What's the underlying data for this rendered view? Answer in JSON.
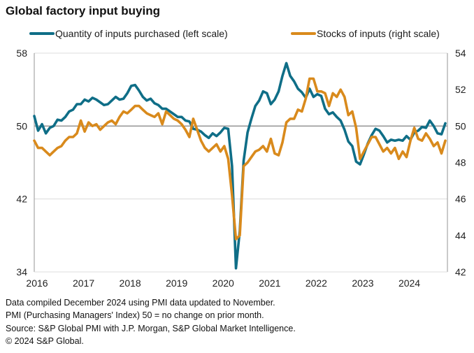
{
  "chart_data": {
    "type": "line",
    "title": "Global factory input buying",
    "xlabel": "",
    "ylabel_left": "",
    "ylabel_right": "",
    "x_start": "2016-01",
    "x_end": "2024-11",
    "x_ticks": [
      "2016",
      "2017",
      "2018",
      "2019",
      "2020",
      "2021",
      "2022",
      "2023",
      "2024"
    ],
    "y_left": {
      "range": [
        34,
        58
      ],
      "ticks": [
        34,
        42,
        50,
        58
      ]
    },
    "y_right": {
      "range": [
        42,
        54
      ],
      "ticks": [
        42,
        44,
        46,
        48,
        50,
        52,
        54
      ]
    },
    "grid": true,
    "reference_line": 50,
    "legend_position": "top",
    "series": [
      {
        "name": "Quantity of inputs purchased (left scale)",
        "axis": "left",
        "color": "#0f6e87",
        "values": [
          51.1,
          49.5,
          50.2,
          49.2,
          49.8,
          50.0,
          50.7,
          50.6,
          51.0,
          51.6,
          51.8,
          52.4,
          52.4,
          52.9,
          52.7,
          53.1,
          52.9,
          52.6,
          52.3,
          52.4,
          52.8,
          53.2,
          52.9,
          53.0,
          53.6,
          54.4,
          54.5,
          53.9,
          53.2,
          52.8,
          53.0,
          52.5,
          52.3,
          51.9,
          51.9,
          51.6,
          51.3,
          51.0,
          51.0,
          50.6,
          50.5,
          49.7,
          49.6,
          49.4,
          49.0,
          48.7,
          49.2,
          48.9,
          49.3,
          49.8,
          49.7,
          45.6,
          34.4,
          38.5,
          46.2,
          49.3,
          50.8,
          52.2,
          52.8,
          53.8,
          53.6,
          52.4,
          52.9,
          53.8,
          55.5,
          56.9,
          55.5,
          54.9,
          54.1,
          53.7,
          53.1,
          54.1,
          53.2,
          53.5,
          53.3,
          51.9,
          51.3,
          51.5,
          51.0,
          50.6,
          49.6,
          48.3,
          47.8,
          46.1,
          45.8,
          46.9,
          48.1,
          49.0,
          49.7,
          49.5,
          48.9,
          48.2,
          48.5,
          48.4,
          48.5,
          48.4,
          48.9,
          48.5,
          49.3,
          49.5,
          49.9,
          49.8,
          50.6,
          50.0,
          49.2,
          49.1,
          50.3
        ]
      },
      {
        "name": "Stocks of inputs (right scale)",
        "axis": "right",
        "color": "#d98a1c",
        "values": [
          49.2,
          48.8,
          48.8,
          48.6,
          48.4,
          48.6,
          48.8,
          48.9,
          49.2,
          49.4,
          49.4,
          49.6,
          50.3,
          49.7,
          50.2,
          50.0,
          50.1,
          49.8,
          50.0,
          50.2,
          50.3,
          50.1,
          50.5,
          50.8,
          50.7,
          50.9,
          51.1,
          51.1,
          50.9,
          50.7,
          50.6,
          50.5,
          50.7,
          50.1,
          50.8,
          50.6,
          50.4,
          50.3,
          50.1,
          49.8,
          49.4,
          50.4,
          49.8,
          49.2,
          48.8,
          48.6,
          48.8,
          49.0,
          48.6,
          48.9,
          48.2,
          46.2,
          43.8,
          44.0,
          47.8,
          48.0,
          48.3,
          48.6,
          48.7,
          48.9,
          48.6,
          49.3,
          48.5,
          48.4,
          49.1,
          50.2,
          50.4,
          50.4,
          50.9,
          50.8,
          51.5,
          52.6,
          52.6,
          51.9,
          51.9,
          51.8,
          51.1,
          51.8,
          51.6,
          52.0,
          51.6,
          50.6,
          50.8,
          49.9,
          48.2,
          48.6,
          49.0,
          49.4,
          49.4,
          49.0,
          48.6,
          48.8,
          48.5,
          48.8,
          48.2,
          48.6,
          48.3,
          49.2,
          49.9,
          49.3,
          49.2,
          49.6,
          49.3,
          48.9,
          49.1,
          48.5,
          49.2
        ]
      }
    ],
    "footer": [
      "Data compiled December 2024 using PMI data updated to November.",
      "PMI (Purchasing Managers' Index) 50 = no change on prior month.",
      "Source: S&P Global PMI with J.P. Morgan, S&P Global Market Intelligence.",
      "© 2024 S&P Global."
    ]
  }
}
